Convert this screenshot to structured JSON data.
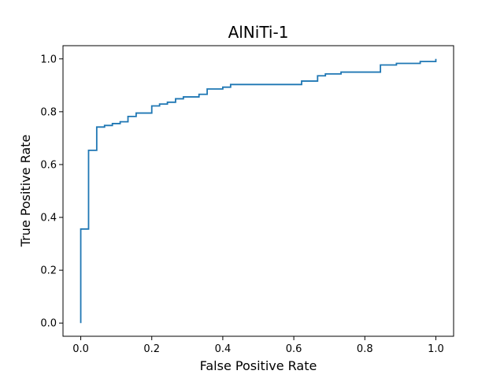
{
  "chart_data": {
    "type": "line",
    "step": "post",
    "title": "AlNiTi-1",
    "xlabel": "False Positive Rate",
    "ylabel": "True Positive Rate",
    "xlim": [
      -0.05,
      1.05
    ],
    "ylim": [
      -0.05,
      1.05
    ],
    "xticks": [
      "0.0",
      "0.2",
      "0.4",
      "0.6",
      "0.8",
      "1.0"
    ],
    "yticks": [
      "0.0",
      "0.2",
      "0.4",
      "0.6",
      "0.8",
      "1.0"
    ],
    "grid": false,
    "legend": "none",
    "line_color": "#1f77b4",
    "series": [
      {
        "x": [
          0.0,
          0.0,
          0.022,
          0.022,
          0.045,
          0.045,
          0.067,
          0.067,
          0.089,
          0.089,
          0.111,
          0.111,
          0.133,
          0.133,
          0.156,
          0.156,
          0.2,
          0.2,
          0.222,
          0.222,
          0.244,
          0.244,
          0.267,
          0.267,
          0.289,
          0.289,
          0.333,
          0.333,
          0.356,
          0.356,
          0.4,
          0.4,
          0.422,
          0.422,
          0.622,
          0.622,
          0.667,
          0.667,
          0.689,
          0.689,
          0.733,
          0.733,
          0.844,
          0.844,
          0.889,
          0.889,
          0.956,
          0.956,
          1.0,
          1.0
        ],
        "y": [
          0.0,
          0.356,
          0.356,
          0.654,
          0.654,
          0.742,
          0.742,
          0.748,
          0.748,
          0.755,
          0.755,
          0.762,
          0.762,
          0.782,
          0.782,
          0.795,
          0.795,
          0.822,
          0.822,
          0.829,
          0.829,
          0.836,
          0.836,
          0.849,
          0.849,
          0.856,
          0.856,
          0.866,
          0.866,
          0.886,
          0.886,
          0.893,
          0.893,
          0.903,
          0.903,
          0.916,
          0.916,
          0.936,
          0.936,
          0.943,
          0.943,
          0.95,
          0.95,
          0.977,
          0.977,
          0.983,
          0.983,
          0.99,
          0.99,
          1.0
        ]
      }
    ]
  }
}
